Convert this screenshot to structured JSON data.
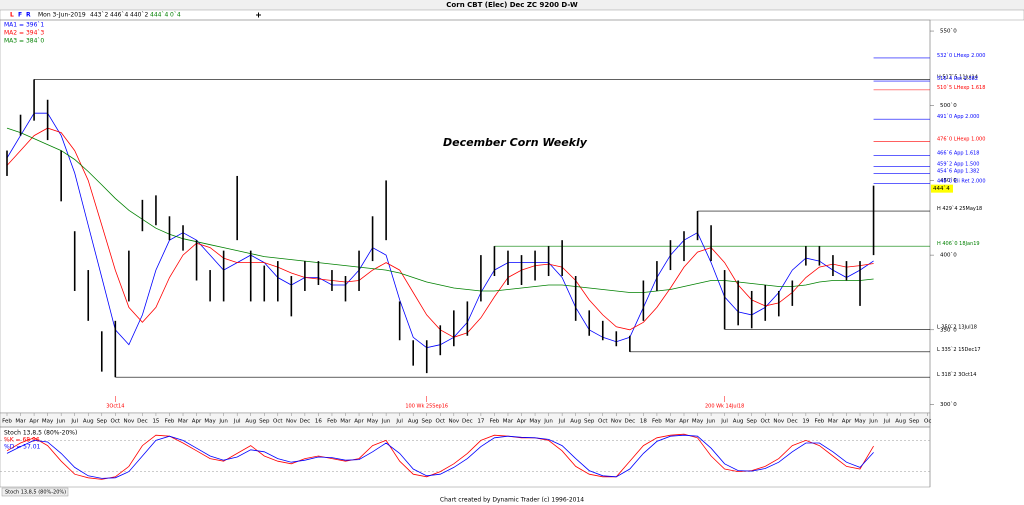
{
  "toolbar": {
    "buttons": [
      "L",
      "F",
      "R"
    ],
    "date": "Mon 3-Jun-2019",
    "quote": [
      "443`2",
      "446`4",
      "440`2",
      "444`4",
      "0`4"
    ]
  },
  "footer": "Chart created by Dynamic Trader  (c) 1996-2014",
  "chart_data": [
    {
      "type": "range-bar",
      "title": "Corn CBT (Elec) Dec ZC 9200 D-W",
      "annotation": "December Corn Weekly",
      "categories": [
        "Feb",
        "Mar",
        "Apr",
        "May",
        "Jun",
        "Jul",
        "Aug",
        "Sep",
        "Oct",
        "Nov",
        "Dec",
        "15",
        "Feb",
        "Mar",
        "Apr",
        "May",
        "Jun",
        "Jul",
        "Aug",
        "Sep",
        "Oct",
        "Nov",
        "Dec",
        "16",
        "Feb",
        "Mar",
        "Apr",
        "May",
        "Jun",
        "Jul",
        "Aug",
        "Sep",
        "Oct",
        "Nov",
        "Dec",
        "17",
        "Feb",
        "Mar",
        "Apr",
        "May",
        "Jun",
        "Jul",
        "Aug",
        "Sep",
        "Oct",
        "Nov",
        "Dec",
        "18",
        "Feb",
        "Mar",
        "Apr",
        "May",
        "Jun",
        "Jul",
        "Aug",
        "Sep",
        "Oct",
        "Nov",
        "Dec",
        "19",
        "Feb",
        "Mar",
        "Apr",
        "May",
        "Jun",
        "Jul",
        "Aug",
        "Sep",
        "Oc"
      ],
      "bar_color": "#000000",
      "highs": [
        470,
        494,
        517.625,
        504,
        470,
        416,
        390,
        349,
        356,
        403,
        437,
        440,
        426,
        420,
        410,
        390,
        403,
        453,
        403,
        393,
        396,
        386,
        396,
        396,
        390,
        386,
        403,
        426,
        450,
        369,
        343,
        343,
        353,
        363,
        369,
        400,
        406,
        403,
        400,
        403,
        406,
        410,
        386,
        363,
        356,
        349,
        346,
        383,
        396,
        410,
        416,
        429.5,
        420,
        390,
        383,
        376,
        380,
        376,
        383,
        406,
        406,
        400,
        396,
        396,
        446.5,
        null,
        null,
        null,
        null
      ],
      "lows": [
        453,
        480,
        490,
        477,
        436,
        376,
        356,
        322,
        318.25,
        369,
        416,
        420,
        410,
        403,
        383,
        369,
        369,
        410,
        369,
        369,
        369,
        359,
        376,
        380,
        376,
        369,
        376,
        396,
        410,
        343,
        326,
        321,
        333,
        339,
        346,
        369,
        386,
        380,
        380,
        383,
        386,
        386,
        356,
        346,
        343,
        339,
        335.25,
        356,
        376,
        390,
        396,
        410,
        396,
        350.25,
        353,
        351,
        356,
        359,
        366,
        393,
        393,
        386,
        383,
        366,
        400,
        null,
        null,
        null,
        null
      ],
      "series": [
        {
          "name": "MA1",
          "label": "MA1 = 396`1",
          "color": "#0000ff",
          "values": [
            465,
            480,
            495,
            495,
            480,
            455,
            420,
            385,
            350,
            340,
            360,
            390,
            410,
            415,
            410,
            400,
            390,
            395,
            400,
            395,
            385,
            380,
            385,
            385,
            380,
            380,
            390,
            405,
            400,
            370,
            345,
            338,
            340,
            345,
            355,
            375,
            390,
            395,
            395,
            395,
            395,
            385,
            365,
            350,
            345,
            342,
            345,
            365,
            385,
            400,
            410,
            415,
            395,
            372,
            362,
            360,
            365,
            375,
            390,
            398,
            396,
            390,
            385,
            390,
            396.125,
            null,
            null,
            null,
            null
          ]
        },
        {
          "name": "MA2",
          "label": "MA2 = 394`3",
          "color": "#ff0000",
          "values": [
            460,
            470,
            480,
            485,
            482,
            470,
            450,
            420,
            390,
            365,
            355,
            365,
            385,
            400,
            408,
            405,
            398,
            395,
            395,
            395,
            392,
            388,
            385,
            384,
            383,
            382,
            383,
            390,
            395,
            390,
            375,
            360,
            350,
            345,
            348,
            358,
            372,
            385,
            390,
            393,
            394,
            392,
            383,
            370,
            360,
            352,
            350,
            355,
            365,
            378,
            392,
            402,
            405,
            395,
            380,
            370,
            366,
            368,
            375,
            385,
            392,
            394,
            392,
            393,
            394.375,
            null,
            null,
            null,
            null
          ]
        },
        {
          "name": "MA3",
          "label": "MA3 = 384`0",
          "color": "#008000",
          "values": [
            485,
            482,
            478,
            474,
            470,
            464,
            456,
            447,
            438,
            430,
            424,
            418,
            414,
            411,
            409,
            407,
            405,
            403,
            401,
            399,
            398,
            397,
            396,
            395,
            394,
            393,
            392,
            391,
            390,
            388,
            385,
            382,
            380,
            378,
            377,
            376,
            376,
            377,
            378,
            379,
            380,
            380,
            379,
            378,
            377,
            376,
            375,
            375,
            376,
            377,
            379,
            381,
            383,
            383,
            382,
            381,
            380,
            379,
            379,
            380,
            382,
            383,
            383,
            383,
            384,
            null,
            null,
            null,
            null
          ]
        }
      ],
      "ylim": [
        294.3,
        557.4
      ],
      "yticks": [
        {
          "value": 550,
          "label": "550`0"
        },
        {
          "value": 500,
          "label": "500`0"
        },
        {
          "value": 450,
          "label": "450`0"
        },
        {
          "value": 400,
          "label": "400`0"
        },
        {
          "value": 350,
          "label": "350`0"
        },
        {
          "value": 300,
          "label": "300`0"
        }
      ],
      "levels": [
        {
          "value": 532,
          "label": "532`0 LHexp 2.000",
          "color": "#0000ff"
        },
        {
          "value": 517.625,
          "label": "H 517`5 11Jul14",
          "color": "#000000"
        },
        {
          "value": 516.5,
          "label": "516`4 Ret 2.382",
          "color": "#0000ff"
        },
        {
          "value": 510.625,
          "label": "510`5 LHexp 1.618",
          "color": "#ff0000"
        },
        {
          "value": 491,
          "label": "491`0 App 2.000",
          "color": "#0000ff"
        },
        {
          "value": 476,
          "label": "476`0 LHexp 1.000",
          "color": "#ff0000"
        },
        {
          "value": 466.75,
          "label": "466`6 App 1.618",
          "color": "#0000ff"
        },
        {
          "value": 459.25,
          "label": "459`2 App 1.500",
          "color": "#0000ff"
        },
        {
          "value": 454.75,
          "label": "454`6 App 1.382",
          "color": "#0000ff"
        },
        {
          "value": 448,
          "label": "448`0 Eli Ret 2.000",
          "color": "#0000ff"
        },
        {
          "value": 429.5,
          "label": "H 429`4 25May18",
          "color": "#000000"
        },
        {
          "value": 406,
          "label": "H 406`0 18Jan19",
          "color": "#008000"
        },
        {
          "value": 350.25,
          "label": "L 350`2 13Jul18",
          "color": "#000000"
        },
        {
          "value": 335.25,
          "label": "L 335`2 15Dec17",
          "color": "#000000"
        },
        {
          "value": 318.25,
          "label": "L 318`2 3Oct14",
          "color": "#000000"
        }
      ],
      "markers": [
        {
          "at": 8,
          "label": "3Oct14"
        },
        {
          "at": 31,
          "label": "100 Wk 25Sep16"
        },
        {
          "at": 53,
          "label": "200 Wk 14Jul18"
        }
      ],
      "last_price": {
        "value": 444.5,
        "label": "444`4"
      }
    },
    {
      "type": "line",
      "title": "Stoch 13,8,5 (80%-20%)",
      "series": [
        {
          "name": "%K",
          "label": "%K = 68.96",
          "color": "#ff0000",
          "values": [
            60,
            75,
            85,
            70,
            40,
            15,
            8,
            5,
            10,
            30,
            70,
            90,
            88,
            75,
            60,
            45,
            40,
            55,
            70,
            50,
            40,
            35,
            45,
            50,
            45,
            40,
            45,
            70,
            80,
            40,
            15,
            10,
            20,
            35,
            55,
            80,
            90,
            88,
            85,
            85,
            80,
            60,
            30,
            15,
            10,
            10,
            40,
            70,
            85,
            90,
            92,
            85,
            50,
            25,
            20,
            22,
            30,
            45,
            70,
            80,
            70,
            50,
            30,
            25,
            68.96,
            null,
            null,
            null,
            null
          ]
        },
        {
          "name": "%D",
          "label": "%D = 57.01",
          "color": "#0000ff",
          "values": [
            55,
            68,
            80,
            77,
            55,
            28,
            12,
            7,
            8,
            20,
            50,
            80,
            88,
            80,
            65,
            50,
            42,
            48,
            62,
            58,
            45,
            38,
            42,
            48,
            47,
            42,
            43,
            58,
            75,
            55,
            25,
            12,
            15,
            28,
            45,
            68,
            85,
            88,
            86,
            85,
            82,
            70,
            45,
            22,
            12,
            10,
            25,
            55,
            78,
            88,
            90,
            88,
            65,
            35,
            22,
            21,
            26,
            38,
            58,
            75,
            75,
            58,
            38,
            28,
            57.01,
            null,
            null,
            null,
            null
          ]
        }
      ],
      "ylim": [
        0,
        100
      ],
      "levels": [
        80,
        20
      ]
    }
  ]
}
